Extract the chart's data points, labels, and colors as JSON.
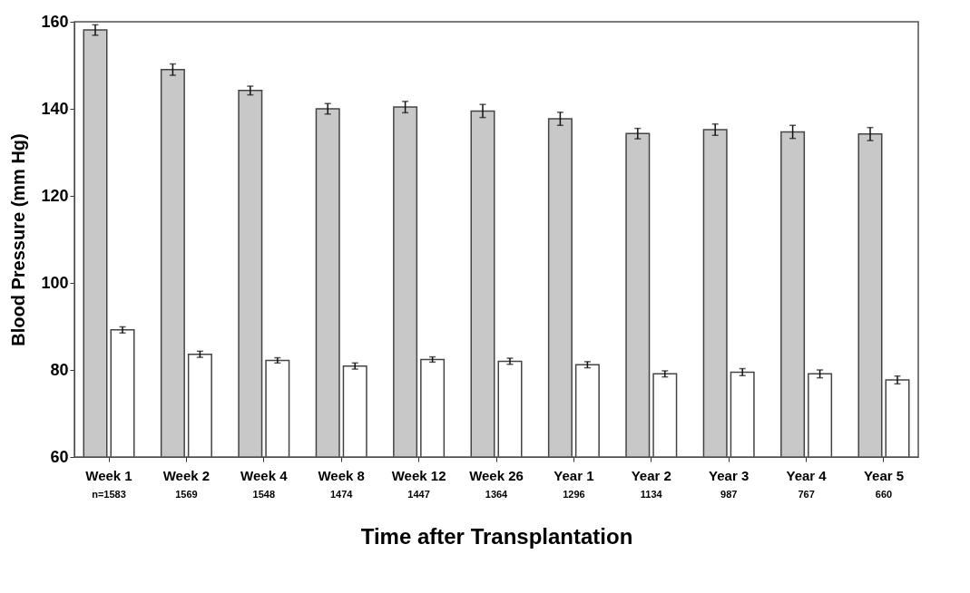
{
  "chart_data": {
    "type": "bar",
    "xlabel": "Time after Transplantation",
    "ylabel": "Blood Pressure (mm Hg)",
    "categories": [
      "Week 1",
      "Week 2",
      "Week 4",
      "Week 8",
      "Week 12",
      "Week 26",
      "Year 1",
      "Year 2",
      "Year 3",
      "Year 4",
      "Year 5"
    ],
    "series": [
      {
        "color": "#c8c8c8",
        "values": [
          158.1,
          149,
          144.2,
          140,
          140.4,
          139.5,
          137.7,
          134.3,
          135.2,
          134.7,
          134.2
        ],
        "errors": [
          1.2,
          1.3,
          1,
          1.2,
          1.3,
          1.5,
          1.5,
          1.2,
          1.3,
          1.5,
          1.5
        ]
      },
      {
        "color": "#ffffff",
        "values": [
          89.2,
          83.6,
          82.2,
          80.9,
          82.4,
          82,
          81.2,
          79.1,
          79.5,
          79.1,
          77.7
        ],
        "errors": [
          0.7,
          0.7,
          0.6,
          0.7,
          0.6,
          0.7,
          0.7,
          0.7,
          0.8,
          0.9,
          0.9
        ]
      }
    ],
    "ylim": [
      60,
      160
    ],
    "yticks": [
      60,
      80,
      100,
      120,
      140,
      160
    ],
    "grid": false,
    "annotations": [
      "n=1583",
      "1569",
      "1548",
      "1474",
      "1447",
      "1364",
      "1296",
      "1134",
      "987",
      "767",
      "660"
    ]
  }
}
